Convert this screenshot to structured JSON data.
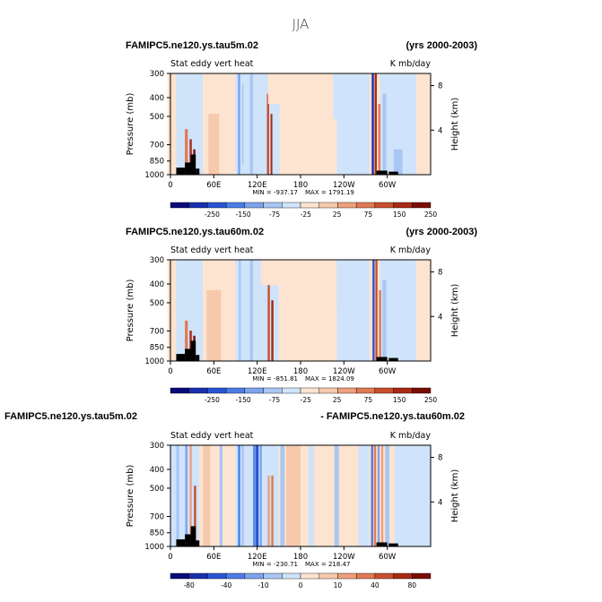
{
  "title": "JJA",
  "colors": {
    "scale": [
      "#0a0a78",
      "#1a2fb0",
      "#2a55d4",
      "#4c7de6",
      "#7ea3ee",
      "#a9c6f4",
      "#cfe3fa",
      "#fde4d0",
      "#f7c9ac",
      "#eea07c",
      "#e07a52",
      "#c94f2c",
      "#a82a14",
      "#7a0c06"
    ],
    "terrain": "#000000"
  },
  "chart_data": [
    {
      "type": "heatmap",
      "id": "p1",
      "left_title": "FAMIPC5.ne120.ys.tau5m.02",
      "right_title": "(yrs 2000-2003)",
      "left_sub": "Stat eddy vert heat",
      "right_sub": "K mb/day",
      "ylabel": "Pressure (mb)",
      "y2label": "Height (km)",
      "yticks": [
        "300",
        "400",
        "500",
        "700",
        "850",
        "1000"
      ],
      "y2ticks": [
        "8",
        "4"
      ],
      "xticks": [
        "0",
        "60E",
        "120E",
        "180",
        "120W",
        "60W"
      ],
      "min_label": "MIN = -937.17",
      "max_label": "MAX = 1791.19",
      "colorbar_labels": [
        "-250",
        "-150",
        "-75",
        "-25",
        "25",
        "75",
        "150",
        "250"
      ],
      "bands": [
        {
          "lon": 22,
          "w": 4,
          "lo": 0.55,
          "hi": 1.0,
          "v": 10
        },
        {
          "lon": 28,
          "w": 3,
          "lo": 0.65,
          "hi": 1.0,
          "v": 12
        },
        {
          "lon": 33,
          "w": 3,
          "lo": 0.75,
          "hi": 1.0,
          "v": 13
        },
        {
          "lon": 26,
          "w": 8,
          "lo": 0.0,
          "hi": 0.55,
          "v": 6
        },
        {
          "lon": 95,
          "w": 3,
          "lo": 0.0,
          "hi": 1.0,
          "v": 4
        },
        {
          "lon": 100,
          "w": 2,
          "lo": 0.1,
          "hi": 0.9,
          "v": 5
        },
        {
          "lon": 135,
          "w": 3,
          "lo": 0.2,
          "hi": 1.0,
          "v": 11
        },
        {
          "lon": 140,
          "w": 3,
          "lo": 0.4,
          "hi": 1.0,
          "v": 12
        },
        {
          "lon": 112,
          "w": 4,
          "lo": 0.0,
          "hi": 1.0,
          "v": 5
        },
        {
          "lon": 146,
          "w": 10,
          "lo": 0.0,
          "hi": 1.0,
          "v": 6
        },
        {
          "lon": 280,
          "w": 3,
          "lo": 0.0,
          "hi": 1.0,
          "v": 1
        },
        {
          "lon": 284,
          "w": 3,
          "lo": 0.0,
          "hi": 1.0,
          "v": 12
        },
        {
          "lon": 289,
          "w": 3,
          "lo": 0.3,
          "hi": 1.0,
          "v": 10
        },
        {
          "lon": 296,
          "w": 5,
          "lo": 0.2,
          "hi": 1.0,
          "v": 5
        },
        {
          "lon": 315,
          "w": 12,
          "lo": 0.75,
          "hi": 1.0,
          "v": 5
        },
        {
          "lon": 60,
          "w": 15,
          "lo": 0.4,
          "hi": 1.0,
          "v": 8
        },
        {
          "lon": 165,
          "w": 60,
          "lo": 0.0,
          "hi": 0.3,
          "v": 7
        },
        {
          "lon": 240,
          "w": 30,
          "lo": 0.0,
          "hi": 0.45,
          "v": 6
        },
        {
          "lon": 2,
          "w": 12,
          "lo": 0.0,
          "hi": 1.0,
          "v": 7
        }
      ]
    },
    {
      "type": "heatmap",
      "id": "p2",
      "left_title": "FAMIPC5.ne120.ys.tau60m.02",
      "right_title": "(yrs 2000-2003)",
      "left_sub": "Stat eddy vert heat",
      "right_sub": "K mb/day",
      "ylabel": "Pressure (mb)",
      "y2label": "Height (km)",
      "yticks": [
        "300",
        "400",
        "500",
        "700",
        "850",
        "1000"
      ],
      "y2ticks": [
        "8",
        "4"
      ],
      "xticks": [
        "0",
        "60E",
        "120E",
        "180",
        "120W",
        "60W"
      ],
      "min_label": "MIN = -851.81",
      "max_label": "MAX = 1824.09",
      "colorbar_labels": [
        "-250",
        "-150",
        "-75",
        "-25",
        "25",
        "75",
        "150",
        "250"
      ],
      "bands": [
        {
          "lon": 22,
          "w": 4,
          "lo": 0.6,
          "hi": 1.0,
          "v": 10
        },
        {
          "lon": 28,
          "w": 3,
          "lo": 0.7,
          "hi": 1.0,
          "v": 12
        },
        {
          "lon": 33,
          "w": 3,
          "lo": 0.75,
          "hi": 1.0,
          "v": 13
        },
        {
          "lon": 26,
          "w": 8,
          "lo": 0.0,
          "hi": 0.6,
          "v": 6
        },
        {
          "lon": 96,
          "w": 3,
          "lo": 0.0,
          "hi": 1.0,
          "v": 5
        },
        {
          "lon": 136,
          "w": 3,
          "lo": 0.2,
          "hi": 1.0,
          "v": 11
        },
        {
          "lon": 141,
          "w": 3,
          "lo": 0.4,
          "hi": 1.0,
          "v": 12
        },
        {
          "lon": 112,
          "w": 4,
          "lo": 0.0,
          "hi": 1.0,
          "v": 5
        },
        {
          "lon": 281,
          "w": 3,
          "lo": 0.0,
          "hi": 1.0,
          "v": 2
        },
        {
          "lon": 285,
          "w": 3,
          "lo": 0.0,
          "hi": 1.0,
          "v": 11
        },
        {
          "lon": 290,
          "w": 3,
          "lo": 0.3,
          "hi": 1.0,
          "v": 10
        },
        {
          "lon": 296,
          "w": 5,
          "lo": 0.2,
          "hi": 1.0,
          "v": 5
        },
        {
          "lon": 60,
          "w": 20,
          "lo": 0.3,
          "hi": 1.0,
          "v": 8
        },
        {
          "lon": 160,
          "w": 70,
          "lo": 0.0,
          "hi": 0.25,
          "v": 7
        },
        {
          "lon": 245,
          "w": 30,
          "lo": 0.0,
          "hi": 0.5,
          "v": 6
        },
        {
          "lon": 2,
          "w": 12,
          "lo": 0.0,
          "hi": 1.0,
          "v": 7
        }
      ]
    },
    {
      "type": "heatmap",
      "id": "p3",
      "left_title": "FAMIPC5.ne120.ys.tau5m.02",
      "right_title": "- FAMIPC5.ne120.ys.tau60m.02",
      "left_sub": "Stat eddy vert heat",
      "right_sub": "K mb/day",
      "ylabel": "Pressure (mb)",
      "y2label": "Height (km)",
      "yticks": [
        "300",
        "400",
        "500",
        "700",
        "850",
        "1000"
      ],
      "y2ticks": [
        "8",
        "4"
      ],
      "xticks": [
        "0",
        "60E",
        "120E",
        "180",
        "120W",
        "60W"
      ],
      "min_label": "MIN = -230.71",
      "max_label": "MAX = 218.47",
      "colorbar_labels": [
        "-80",
        "-40",
        "-10",
        "0",
        "10",
        "40",
        "80"
      ],
      "bands": [
        {
          "lon": 10,
          "w": 4,
          "lo": 0.0,
          "hi": 1.0,
          "v": 5
        },
        {
          "lon": 22,
          "w": 3,
          "lo": 0.0,
          "hi": 1.0,
          "v": 4
        },
        {
          "lon": 28,
          "w": 3,
          "lo": 0.0,
          "hi": 1.0,
          "v": 9
        },
        {
          "lon": 34,
          "w": 3,
          "lo": 0.4,
          "hi": 1.0,
          "v": 11
        },
        {
          "lon": 70,
          "w": 4,
          "lo": 0.0,
          "hi": 1.0,
          "v": 5
        },
        {
          "lon": 95,
          "w": 3,
          "lo": 0.0,
          "hi": 1.0,
          "v": 3
        },
        {
          "lon": 100,
          "w": 3,
          "lo": 0.0,
          "hi": 1.0,
          "v": 5
        },
        {
          "lon": 116,
          "w": 3,
          "lo": 0.0,
          "hi": 1.0,
          "v": 3
        },
        {
          "lon": 120,
          "w": 4,
          "lo": 0.0,
          "hi": 1.0,
          "v": 2
        },
        {
          "lon": 125,
          "w": 3,
          "lo": 0.0,
          "hi": 1.0,
          "v": 4
        },
        {
          "lon": 136,
          "w": 3,
          "lo": 0.3,
          "hi": 1.0,
          "v": 9
        },
        {
          "lon": 141,
          "w": 3,
          "lo": 0.3,
          "hi": 1.0,
          "v": 10
        },
        {
          "lon": 155,
          "w": 6,
          "lo": 0.0,
          "hi": 1.0,
          "v": 5
        },
        {
          "lon": 195,
          "w": 8,
          "lo": 0.0,
          "hi": 1.0,
          "v": 6
        },
        {
          "lon": 230,
          "w": 6,
          "lo": 0.0,
          "hi": 1.0,
          "v": 5
        },
        {
          "lon": 279,
          "w": 3,
          "lo": 0.0,
          "hi": 1.0,
          "v": 3
        },
        {
          "lon": 283,
          "w": 3,
          "lo": 0.0,
          "hi": 1.0,
          "v": 10
        },
        {
          "lon": 288,
          "w": 3,
          "lo": 0.0,
          "hi": 1.0,
          "v": 4
        },
        {
          "lon": 293,
          "w": 3,
          "lo": 0.0,
          "hi": 1.0,
          "v": 9
        },
        {
          "lon": 300,
          "w": 6,
          "lo": 0.0,
          "hi": 1.0,
          "v": 5
        },
        {
          "lon": 320,
          "w": 10,
          "lo": 0.0,
          "hi": 1.0,
          "v": 6
        },
        {
          "lon": 50,
          "w": 10,
          "lo": 0.0,
          "hi": 1.0,
          "v": 8
        },
        {
          "lon": 170,
          "w": 20,
          "lo": 0.0,
          "hi": 1.0,
          "v": 8
        }
      ]
    }
  ]
}
